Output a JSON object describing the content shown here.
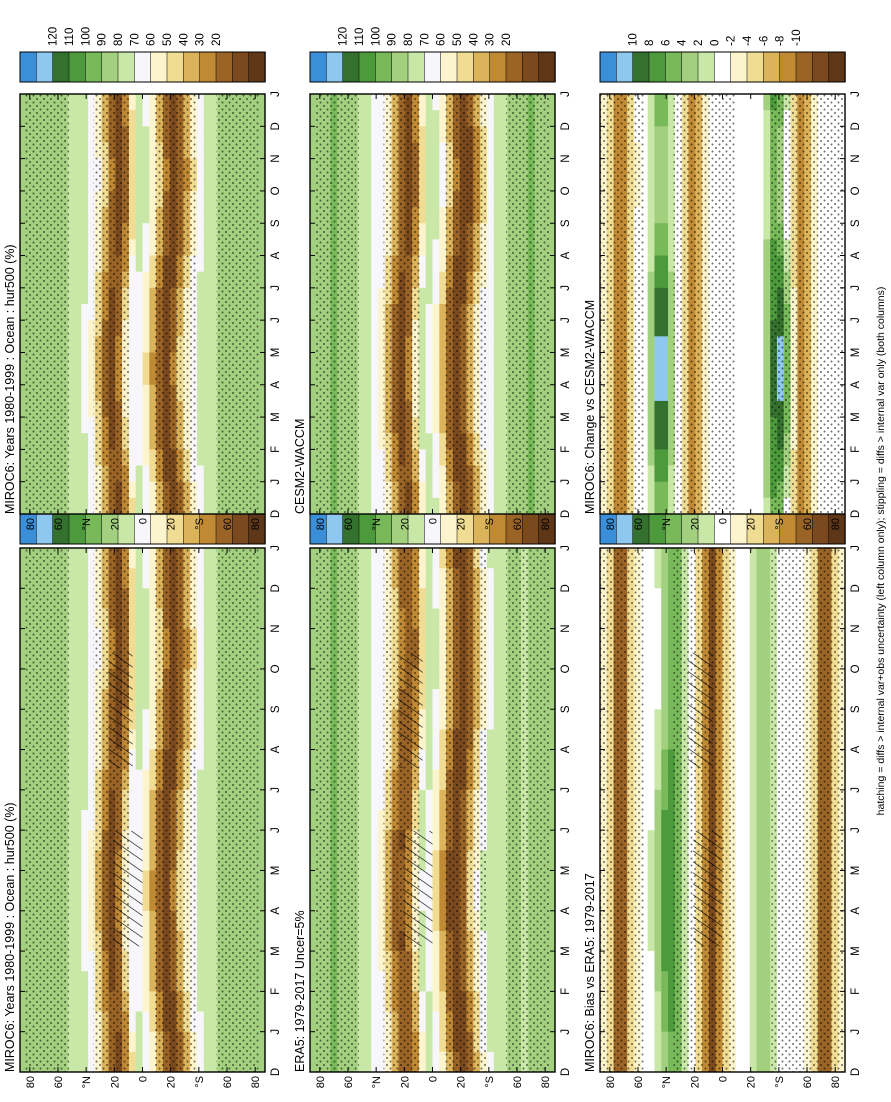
{
  "figure": {
    "footer": "hatching = diffs > internal var+obs uncertainty (left column only); stippling = diffs > internal var only (both columns)"
  },
  "palette_abs": [
    "#3a8fd8",
    "#8fc8ee",
    "#35712e",
    "#4d9a3d",
    "#78b95a",
    "#a2d07e",
    "#c9e8a8",
    "#f7f7fb",
    "#fbf4cd",
    "#f0dc92",
    "#dab35a",
    "#c08a35",
    "#9a6427",
    "#7a4a1e",
    "#5e3719"
  ],
  "palette_diff": [
    "#3a8fd8",
    "#8fc8ee",
    "#35712e",
    "#4d9a3d",
    "#78b95a",
    "#a2d07e",
    "#c9e8a8",
    "#ffffff",
    "#fbf4cd",
    "#f0dc92",
    "#dab35a",
    "#c08a35",
    "#9a6427",
    "#7a4a1e",
    "#5e3719"
  ],
  "colorbar_abs_labels": [
    "120",
    "110",
    "100",
    "90",
    "80",
    "70",
    "60",
    "50",
    "40",
    "30",
    "20"
  ],
  "colorbar_diff_labels": [
    "10",
    "8",
    "6",
    "4",
    "2",
    "0",
    "-2",
    "-4",
    "-6",
    "-8",
    "-10"
  ],
  "month_labels": [
    "D",
    "J",
    "F",
    "M",
    "A",
    "M",
    "J",
    "J",
    "A",
    "S",
    "O",
    "N",
    "D",
    "J"
  ],
  "lat_labels": [
    "80",
    "60",
    "°N",
    "20",
    "0",
    "20",
    "°S",
    "60",
    "80"
  ],
  "chart_data": [
    {
      "type": "heatmap",
      "title": "MIROC6: Years 1980-1999 : Ocean : hur500 (%)",
      "variable": "hur500",
      "units": "%",
      "x_axis": "month",
      "y_axis": "latitude",
      "colorbar_range": [
        20,
        120
      ],
      "hatching": true,
      "stippling": true
    },
    {
      "type": "heatmap",
      "title": "ERA5: 1979-2017 Uncer=5%",
      "variable": "hur500",
      "units": "%",
      "x_axis": "month",
      "y_axis": "latitude",
      "colorbar_range": [
        20,
        120
      ],
      "hatching": true,
      "stippling": true
    },
    {
      "type": "heatmap",
      "title": "MIROC6: Bias vs ERA5: 1979-2017",
      "variable": "hur500",
      "units": "%",
      "x_axis": "month",
      "y_axis": "latitude",
      "colorbar_range": [
        -10,
        10
      ],
      "hatching": true,
      "stippling": true
    },
    {
      "type": "heatmap",
      "title": "MIROC6: Years 1980-1999 : Ocean : hur500 (%)",
      "variable": "hur500",
      "units": "%",
      "x_axis": "month",
      "y_axis": "latitude",
      "colorbar_range": [
        20,
        120
      ],
      "hatching": false,
      "stippling": true
    },
    {
      "type": "heatmap",
      "title": "CESM2-WACCM",
      "variable": "hur500",
      "units": "%",
      "x_axis": "month",
      "y_axis": "latitude",
      "colorbar_range": [
        20,
        120
      ],
      "hatching": false,
      "stippling": true
    },
    {
      "type": "heatmap",
      "title": "MIROC6: Change vs CESM2-WACCM",
      "variable": "hur500",
      "units": "%",
      "x_axis": "month",
      "y_axis": "latitude",
      "colorbar_range": [
        -10,
        10
      ],
      "hatching": false,
      "stippling": true
    }
  ]
}
